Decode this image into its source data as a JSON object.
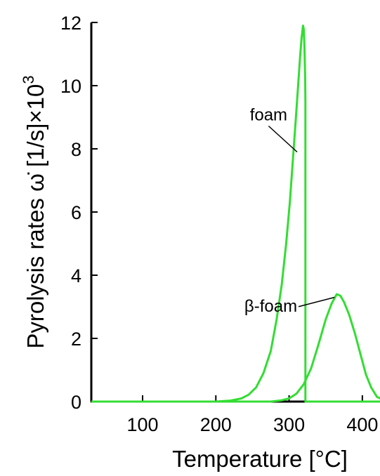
{
  "chart_data": {
    "type": "line",
    "xlabel": "Temperature [°C]",
    "ylabel": "Pyrolysis rates ω̇ [1/s]×10",
    "ylabel_exponent": "3",
    "xlim": [
      30,
      450
    ],
    "ylim": [
      0,
      12
    ],
    "x_ticks": [
      "100",
      "200",
      "300",
      "400"
    ],
    "y_ticks": [
      "0",
      "2",
      "4",
      "6",
      "8",
      "10",
      "12"
    ],
    "grid": false,
    "line_color": "#33dd33",
    "series": [
      {
        "name": "foam",
        "x": [
          30,
          200,
          220,
          235,
          245,
          255,
          265,
          275,
          283,
          290,
          296,
          301,
          305,
          309,
          312,
          315,
          317,
          319,
          320,
          321,
          322,
          322.3,
          322.3,
          450
        ],
        "y": [
          0,
          0,
          0.03,
          0.1,
          0.22,
          0.45,
          0.9,
          1.6,
          2.6,
          3.7,
          5.0,
          6.3,
          7.6,
          8.9,
          9.9,
          10.9,
          11.5,
          11.9,
          11.8,
          11.2,
          10.2,
          9.5,
          0,
          0
        ]
      },
      {
        "name": "β-foam",
        "x": [
          30,
          275,
          290,
          300,
          310,
          320,
          330,
          340,
          350,
          358,
          365,
          370,
          375,
          382,
          390,
          398,
          405,
          412,
          420,
          430,
          450
        ],
        "y": [
          0,
          0,
          0.04,
          0.1,
          0.25,
          0.55,
          1.05,
          1.8,
          2.6,
          3.1,
          3.4,
          3.35,
          3.15,
          2.75,
          2.15,
          1.45,
          0.85,
          0.45,
          0.15,
          0.04,
          0
        ]
      }
    ],
    "annotations": [
      {
        "text": "foam",
        "at": [
          272,
          8.9
        ],
        "points_to": [
          311,
          7.9
        ]
      },
      {
        "text": "β-foam",
        "at": [
          275,
          2.85
        ],
        "points_to": [
          362,
          3.3
        ]
      }
    ]
  }
}
